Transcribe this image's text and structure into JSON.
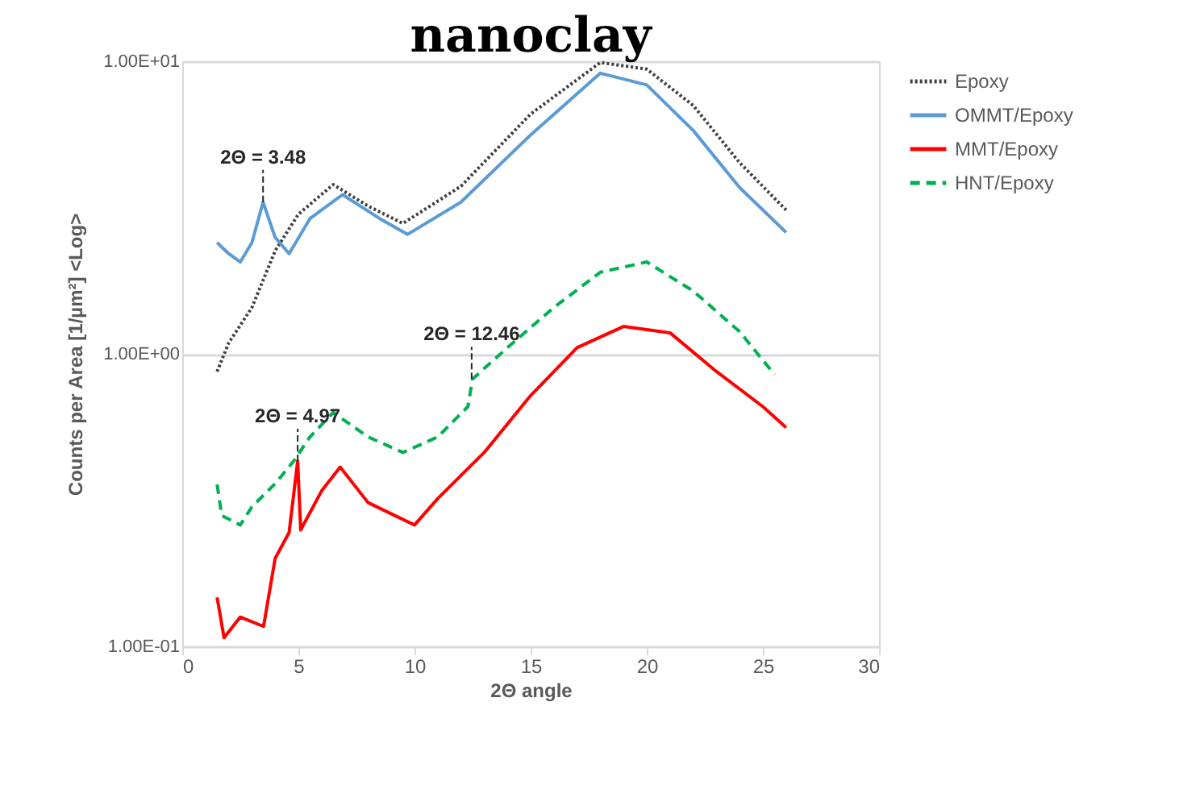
{
  "chart_data": {
    "type": "line",
    "title": "nanoclay",
    "xlabel": "2Θ angle",
    "ylabel": "Counts per Area [1/µm²] <Log>",
    "log": "y",
    "grid": "y",
    "legend": "right",
    "xlim": [
      0,
      30
    ],
    "xticks": [
      0,
      5,
      10,
      15,
      20,
      25,
      30
    ],
    "ylim": [
      0.1,
      10
    ],
    "yticks": [
      {
        "value": 0.1,
        "label": "1.00E-01"
      },
      {
        "value": 1,
        "label": "1.00E+00"
      },
      {
        "value": 10,
        "label": "1.00E+01"
      }
    ],
    "series": [
      {
        "name": "Epoxy",
        "color": "#404040",
        "line_style": "dotted",
        "x": [
          1.5,
          2,
          3,
          4,
          5,
          6.5,
          8,
          9.5,
          12,
          15,
          18,
          20,
          22,
          24,
          26
        ],
        "values": [
          0.87,
          1.09,
          1.44,
          2.25,
          3.0,
          3.79,
          3.2,
          2.79,
          3.74,
          6.6,
          9.9,
          9.4,
          7.06,
          4.5,
          3.1
        ]
      },
      {
        "name": "OMMT/Epoxy",
        "color": "#5b9bd5",
        "line_style": "solid",
        "x": [
          1.5,
          2,
          2.5,
          3,
          3.48,
          4,
          4.6,
          5.5,
          6.9,
          8.5,
          9.7,
          12,
          15,
          18,
          20,
          22,
          24,
          26
        ],
        "values": [
          2.4,
          2.2,
          2.06,
          2.4,
          3.3,
          2.5,
          2.2,
          2.9,
          3.5,
          2.9,
          2.56,
          3.3,
          5.6,
          9.1,
          8.3,
          5.8,
          3.7,
          2.6
        ]
      },
      {
        "name": "MMT/Epoxy",
        "color": "#ff0000",
        "line_style": "solid",
        "x": [
          1.5,
          1.8,
          2.5,
          3.5,
          4,
          4.6,
          4.97,
          5.1,
          6,
          6.8,
          8,
          10,
          11,
          13,
          15,
          17,
          19,
          21,
          23,
          25,
          26
        ],
        "values": [
          0.147,
          0.107,
          0.126,
          0.117,
          0.2,
          0.245,
          0.43,
          0.25,
          0.34,
          0.41,
          0.31,
          0.26,
          0.32,
          0.46,
          0.72,
          1.05,
          1.24,
          1.18,
          0.87,
          0.66,
          0.56
        ]
      },
      {
        "name": "HNT/Epoxy",
        "color": "#00b050",
        "line_style": "dashed",
        "x": [
          1.5,
          1.7,
          2.5,
          3,
          4,
          4.8,
          5.5,
          6.5,
          8,
          9.5,
          11,
          12.3,
          12.5,
          14,
          16,
          18,
          20,
          22,
          24,
          25.5
        ],
        "values": [
          0.358,
          0.28,
          0.26,
          0.3,
          0.36,
          0.43,
          0.52,
          0.63,
          0.52,
          0.46,
          0.52,
          0.66,
          0.82,
          1.05,
          1.44,
          1.9,
          2.06,
          1.64,
          1.19,
          0.85
        ]
      }
    ],
    "annotations": [
      {
        "text": "2Θ = 3.48",
        "x": 3.48,
        "y": 3.3
      },
      {
        "text": "2Θ = 4.97",
        "x": 4.97,
        "y": 0.43
      },
      {
        "text": "2Θ = 12.46",
        "x": 12.46,
        "y": 0.82
      }
    ]
  }
}
